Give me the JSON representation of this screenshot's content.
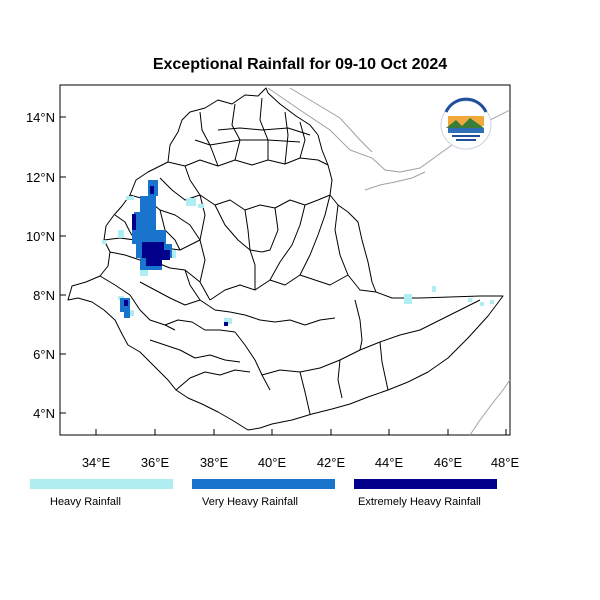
{
  "title": "Exceptional Rainfall for 09-10 Oct 2024",
  "axes": {
    "lon_ticks": [
      "34°E",
      "36°E",
      "38°E",
      "40°E",
      "42°E",
      "44°E",
      "46°E",
      "48°E"
    ],
    "lat_ticks": [
      "14°N",
      "12°N",
      "10°N",
      "8°N",
      "6°N",
      "4°N"
    ]
  },
  "colors": {
    "heavy": "#aeeef0",
    "very_heavy": "#1874cd",
    "extremely_heavy": "#00008b",
    "boundary": "#000000",
    "neighbor_boundary": "#a0a0a0"
  },
  "legend": [
    {
      "label": "Heavy Rainfall",
      "color": "#aeeef0"
    },
    {
      "label": "Very Heavy Rainfall",
      "color": "#1874cd"
    },
    {
      "label": "Extremely Heavy Rainfall",
      "color": "#00008b"
    }
  ],
  "logo": {
    "icon": "national-meteorology-agency-logo"
  }
}
